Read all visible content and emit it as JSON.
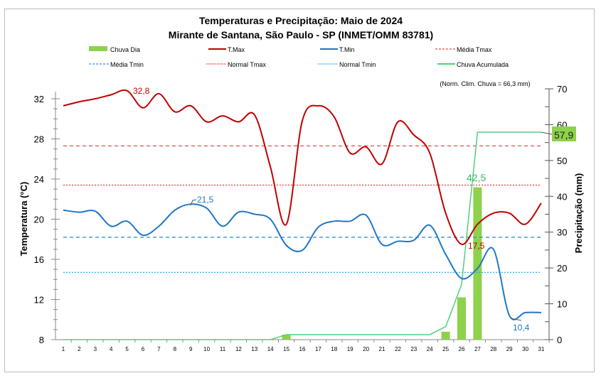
{
  "chart_data": {
    "type": "line",
    "title": "Temperaturas e Precipitação: Maio de 2024",
    "subtitle": "Mirante de Santana, São Paulo - SP (INMET/OMM 83781)",
    "note": "(Norm. Clim. Chuva = 66,3 mm)",
    "xlabel": "",
    "ylabel": "Temperatura (°C)",
    "y2label": "Precipitação (mm)",
    "x": [
      1,
      2,
      3,
      4,
      5,
      6,
      7,
      8,
      9,
      10,
      11,
      12,
      13,
      14,
      15,
      16,
      17,
      18,
      19,
      20,
      21,
      22,
      23,
      24,
      25,
      26,
      27,
      28,
      29,
      30,
      31
    ],
    "ylim": [
      8,
      32
    ],
    "yticks": [
      8,
      12,
      16,
      20,
      24,
      28,
      32
    ],
    "y2lim": [
      0,
      70
    ],
    "y2ticks": [
      0,
      10,
      20,
      30,
      40,
      50,
      60,
      70
    ],
    "legend": [
      "Chuva Dia",
      "T.Max",
      "T.Min",
      "Média Tmax",
      "Média Tmin",
      "Normal Tmax",
      "Normal Tmin",
      "Chuva Acumulada"
    ],
    "series": {
      "tmax": {
        "name": "T.Max",
        "color": "#c00000",
        "values": [
          31.3,
          31.7,
          32.0,
          32.4,
          32.8,
          31.1,
          32.5,
          30.7,
          31.3,
          29.7,
          30.3,
          29.7,
          30.4,
          25.2,
          19.5,
          29.8,
          31.3,
          30.2,
          26.6,
          27.2,
          25.5,
          29.7,
          28.4,
          26.6,
          20.6,
          17.5,
          19.5,
          20.6,
          20.6,
          19.5,
          21.6
        ]
      },
      "tmin": {
        "name": "T.Min",
        "color": "#1f77c8",
        "values": [
          20.9,
          20.7,
          20.8,
          19.3,
          19.8,
          18.4,
          19.3,
          20.9,
          21.5,
          21.1,
          19.3,
          20.7,
          20.5,
          20.0,
          17.4,
          16.9,
          19.2,
          19.8,
          19.8,
          20.4,
          17.5,
          17.8,
          17.9,
          19.4,
          16.5,
          14.1,
          15.1,
          17.0,
          10.4,
          10.7,
          10.7
        ]
      },
      "chuva_dia": {
        "name": "Chuva Dia",
        "color": "#8ed14a",
        "values": [
          0,
          0,
          0,
          0,
          0,
          0,
          0,
          0,
          0,
          0,
          0,
          0,
          0,
          0,
          1.4,
          0,
          0,
          0,
          0,
          0,
          0,
          0,
          0,
          0,
          2.2,
          11.8,
          42.5,
          0,
          0,
          0,
          0
        ]
      },
      "chuva_acumulada": {
        "name": "Chuva Acumulada",
        "color": "#4fcf7d",
        "values": [
          0,
          0,
          0,
          0,
          0,
          0,
          0,
          0,
          0,
          0,
          0,
          0,
          0,
          0,
          1.4,
          1.4,
          1.4,
          1.4,
          1.4,
          1.4,
          1.4,
          1.4,
          1.4,
          1.4,
          3.6,
          15.4,
          57.9,
          57.9,
          57.9,
          57.9,
          57.9
        ]
      },
      "media_tmax": {
        "name": "Média Tmax",
        "color": "#e84a4a",
        "value": 27.3
      },
      "normal_tmax": {
        "name": "Normal Tmax",
        "color": "#ff3030",
        "value": 23.4
      },
      "media_tmin": {
        "name": "Média Tmin",
        "color": "#3a8fdc",
        "value": 18.2
      },
      "normal_tmin": {
        "name": "Normal Tmin",
        "color": "#20b0f0",
        "value": 14.7
      }
    },
    "annotations": {
      "tmax_max": "32,8",
      "tmin_max": "21,5",
      "tmax_min": "17,5",
      "tmin_min": "10,4",
      "chuva_max": "42,5",
      "chuva_total": "57,9"
    }
  }
}
